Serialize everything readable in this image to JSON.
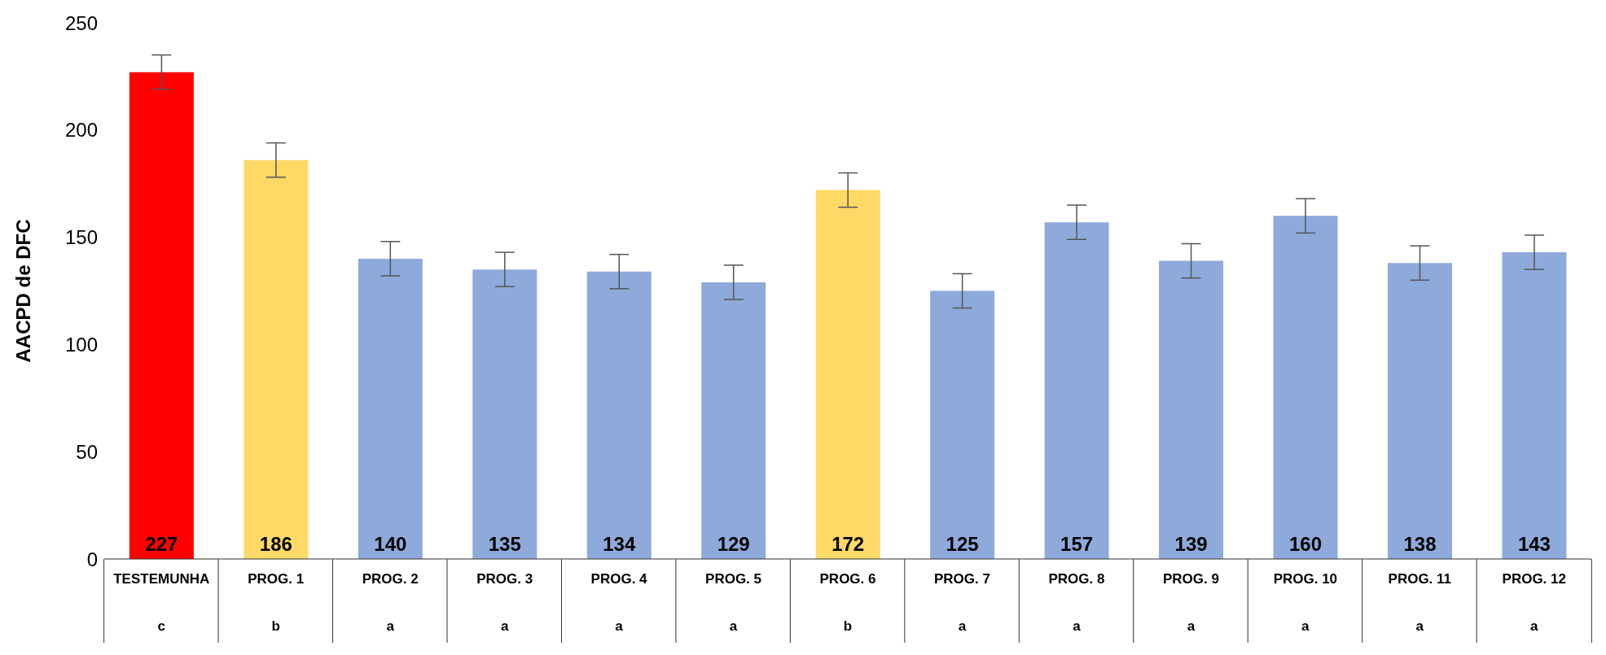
{
  "chart_data": {
    "type": "bar",
    "ylabel": "AACPD de DFC",
    "categories": [
      "TESTEMUNHA",
      "PROG. 1",
      "PROG. 2",
      "PROG. 3",
      "PROG. 4",
      "PROG. 5",
      "PROG. 6",
      "PROG. 7",
      "PROG. 8",
      "PROG. 9",
      "PROG. 10",
      "PROG. 11",
      "PROG. 12"
    ],
    "values": [
      227,
      186,
      140,
      135,
      134,
      129,
      172,
      125,
      157,
      139,
      160,
      138,
      143
    ],
    "errors": [
      8,
      8,
      8,
      8,
      8,
      8,
      8,
      8,
      8,
      8,
      8,
      8,
      8
    ],
    "colors": [
      "#ff0000",
      "#ffd966",
      "#8eaadb",
      "#8eaadb",
      "#8eaadb",
      "#8eaadb",
      "#ffd966",
      "#8eaadb",
      "#8eaadb",
      "#8eaadb",
      "#8eaadb",
      "#8eaadb",
      "#8eaadb"
    ],
    "data_labels": true,
    "ylim": [
      0,
      250
    ],
    "yticks": [
      0,
      50,
      100,
      150,
      200,
      250
    ],
    "grid": false,
    "legend": false,
    "annotations": [
      "c",
      "b",
      "a",
      "a",
      "a",
      "a",
      "b",
      "a",
      "a",
      "a",
      "a",
      "a",
      "a"
    ]
  }
}
